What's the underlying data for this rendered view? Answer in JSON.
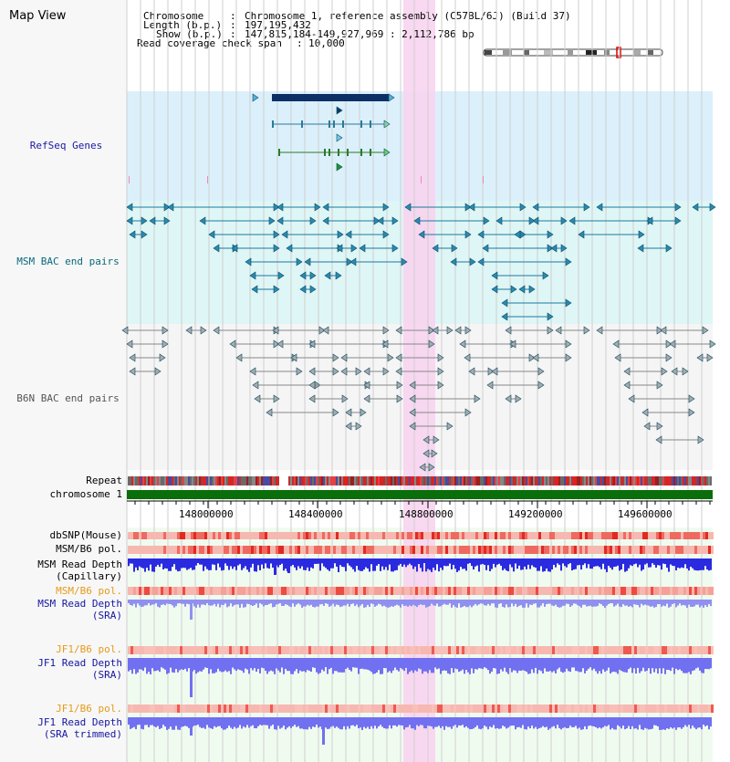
{
  "title": "Map View",
  "header": {
    "chromosome_key": "Chromosome",
    "chromosome_value": "Chromosome 1, reference assembly (C57BL/6J) (Build 37)",
    "length_key": "Length (b.p.)",
    "length_value": "197,195,432",
    "show_key": "Show (b.p.)",
    "show_value": "147,815,184-149,927,969 : 2,112,786 bp",
    "coverage_key": "Read coverage check span",
    "coverage_value": "10,000"
  },
  "tracks": {
    "refseq": "RefSeq Genes",
    "msm_bac": "MSM BAC end pairs",
    "b6n_bac": "B6N BAC end pairs",
    "repeat": "Repeat",
    "chromosome": "chromosome 1",
    "dbsnp": "dbSNP(Mouse)",
    "msm_b6_pol": "MSM/B6 pol.",
    "msm_depth_cap_1": "MSM Read Depth",
    "msm_depth_cap_2": "(Capillary)",
    "msm_b6_pol_2": "MSM/B6 pol.",
    "msm_depth_sra_1": "MSM Read Depth",
    "msm_depth_sra_2": "(SRA)",
    "jf1_b6_pol": "JF1/B6 pol.",
    "jf1_depth_sra_1": "JF1 Read Depth",
    "jf1_depth_sra_2": "(SRA)",
    "jf1_b6_pol_2": "JF1/B6 pol.",
    "jf1_depth_trim_1": "JF1 Read Depth",
    "jf1_depth_trim_2": "(SRA trimmed)"
  },
  "axis": {
    "ticks": [
      "148000000",
      "148400000",
      "148800000",
      "149200000",
      "149600000"
    ]
  },
  "colors": {
    "refseq_bg": "#dbf0fb",
    "msm_bg": "#dff6f6",
    "highlight": "#f8d4f0",
    "refseq_label": "#1a1aa0",
    "msm_label": "#0a6a7a",
    "b6n_label": "#555555",
    "orange_label": "#e69a1a",
    "blue_label": "#1515a0",
    "chromosome_bar": "#0a6e0a"
  }
}
